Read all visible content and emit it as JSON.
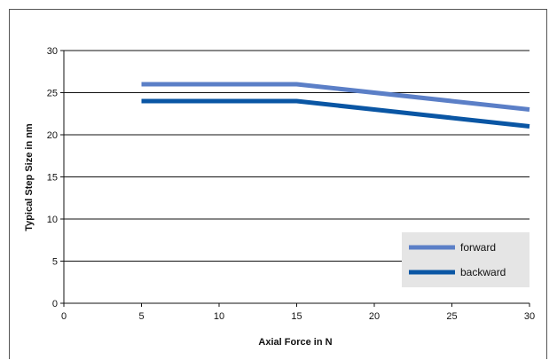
{
  "chart_data": {
    "type": "line",
    "xlabel": "Axial Force in N",
    "ylabel": "Typical Step Size in nm",
    "xlim": [
      0,
      30
    ],
    "ylim": [
      0,
      30
    ],
    "x_ticks": [
      "0",
      "5",
      "10",
      "15",
      "20",
      "25",
      "30"
    ],
    "y_ticks": [
      "0",
      "5",
      "10",
      "15",
      "20",
      "25",
      "30"
    ],
    "grid": "horizontal",
    "legend_position": "bottom-right",
    "series": [
      {
        "name": "forward",
        "color": "#5b7fc7",
        "x": [
          5,
          15,
          30
        ],
        "y": [
          26,
          26,
          23
        ]
      },
      {
        "name": "backward",
        "color": "#0a56a4",
        "x": [
          5,
          15,
          30
        ],
        "y": [
          24,
          24,
          21
        ]
      }
    ]
  }
}
